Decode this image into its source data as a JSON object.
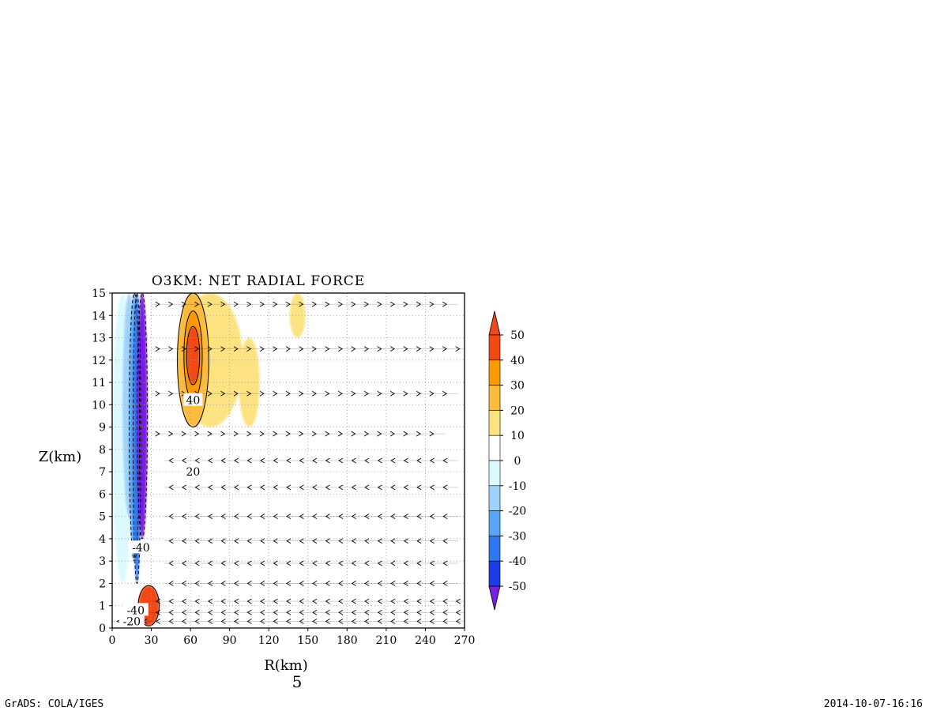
{
  "chart_data": {
    "type": "heatmap",
    "title": "O3KM: NET RADIAL FORCE",
    "xlabel": "R(km)",
    "ylabel": "Z(km)",
    "panel_number": "5",
    "xlim": [
      0,
      270
    ],
    "ylim": [
      0,
      15
    ],
    "x_ticks": [
      "0",
      "30",
      "60",
      "90",
      "120",
      "150",
      "180",
      "210",
      "240",
      "270"
    ],
    "y_ticks": [
      "0",
      "1",
      "2",
      "3",
      "4",
      "5",
      "6",
      "7",
      "8",
      "9",
      "10",
      "11",
      "12",
      "13",
      "14",
      "15"
    ],
    "grid": "dotted",
    "colorbar": {
      "labels": [
        "50",
        "40",
        "30",
        "20",
        "10",
        "0",
        "-10",
        "-20",
        "-30",
        "-40",
        "-50"
      ],
      "bins": [
        {
          "range": [
            40,
            50
          ],
          "color": "#f04a14"
        },
        {
          "range": [
            30,
            40
          ],
          "color": "#fb9a00"
        },
        {
          "range": [
            20,
            30
          ],
          "color": "#fbbb3c"
        },
        {
          "range": [
            10,
            20
          ],
          "color": "#fde282"
        },
        {
          "range": [
            0,
            10
          ],
          "color": "#ffffff"
        },
        {
          "range": [
            -10,
            0
          ],
          "color": "#dcfafe"
        },
        {
          "range": [
            -20,
            -10
          ],
          "color": "#a0d2fa"
        },
        {
          "range": [
            -30,
            -20
          ],
          "color": "#5aa5f5"
        },
        {
          "range": [
            -40,
            -30
          ],
          "color": "#2d78f0"
        },
        {
          "range": [
            -50,
            -40
          ],
          "color": "#1b3ce6"
        }
      ],
      "over_color": "#f0461e",
      "under_color": "#7a1ee6"
    },
    "fields": [
      {
        "value": 5,
        "color": "#dcfafe",
        "center": [
          8,
          8.5
        ],
        "radius": [
          8,
          6.5
        ]
      },
      {
        "value": -15,
        "color": "#a0d2fa",
        "center": [
          13,
          10
        ],
        "radius": [
          5,
          5
        ]
      },
      {
        "value": -25,
        "color": "#5aa5f5",
        "center": [
          17,
          9
        ],
        "radius": [
          4,
          6
        ]
      },
      {
        "value": -35,
        "color": "#2d78f0",
        "center": [
          19,
          8.5
        ],
        "radius": [
          3,
          6.5
        ]
      },
      {
        "value": -55,
        "color": "#7a1ee6",
        "center": [
          23,
          9.5
        ],
        "radius": [
          4,
          5.5
        ]
      },
      {
        "value": 15,
        "color": "#fde282",
        "center": [
          75,
          12
        ],
        "radius": [
          25,
          3
        ]
      },
      {
        "value": 25,
        "color": "#fbbb3c",
        "center": [
          62,
          12
        ],
        "radius": [
          12,
          3
        ]
      },
      {
        "value": 35,
        "color": "#fb9a00",
        "center": [
          62,
          12.2
        ],
        "radius": [
          7,
          2
        ]
      },
      {
        "value": 45,
        "color": "#f04a14",
        "center": [
          62,
          12.2
        ],
        "radius": [
          5,
          1.3
        ]
      },
      {
        "value": 45,
        "color": "#f04a14",
        "center": [
          28,
          1
        ],
        "radius": [
          8,
          0.9
        ]
      },
      {
        "value": 15,
        "color": "#fde282",
        "center": [
          142,
          14
        ],
        "radius": [
          6,
          1
        ]
      },
      {
        "value": 15,
        "color": "#fde282",
        "center": [
          105,
          11
        ],
        "radius": [
          8,
          2
        ]
      }
    ],
    "contour_labels": [
      {
        "text": "40",
        "r": 62,
        "z": 10.2
      },
      {
        "text": "20",
        "r": 62,
        "z": 7.0
      },
      {
        "text": "-40",
        "r": 22,
        "z": 3.6
      },
      {
        "text": "-40",
        "r": 18,
        "z": 0.8
      },
      {
        "text": "-20",
        "r": 15,
        "z": 0.3
      }
    ],
    "wind_arrows": [
      {
        "z": 14.5,
        "r_start": 30,
        "r_end": 265,
        "direction": "outward"
      },
      {
        "z": 12.5,
        "r_start": 30,
        "r_end": 270,
        "direction": "outward"
      },
      {
        "z": 10.5,
        "r_start": 30,
        "r_end": 265,
        "direction": "outward"
      },
      {
        "z": 8.7,
        "r_start": 30,
        "r_end": 255,
        "direction": "outward"
      },
      {
        "z": 7.5,
        "r_start": 40,
        "r_end": 265,
        "direction": "inward"
      },
      {
        "z": 6.3,
        "r_start": 40,
        "r_end": 265,
        "direction": "inward"
      },
      {
        "z": 5.0,
        "r_start": 40,
        "r_end": 265,
        "direction": "inward"
      },
      {
        "z": 3.9,
        "r_start": 40,
        "r_end": 265,
        "direction": "inward"
      },
      {
        "z": 2.9,
        "r_start": 40,
        "r_end": 265,
        "direction": "inward"
      },
      {
        "z": 2.0,
        "r_start": 40,
        "r_end": 265,
        "direction": "inward"
      },
      {
        "z": 1.2,
        "r_start": 30,
        "r_end": 270,
        "direction": "inward"
      },
      {
        "z": 0.7,
        "r_start": 20,
        "r_end": 270,
        "direction": "inward"
      },
      {
        "z": 0.3,
        "r_start": 0,
        "r_end": 270,
        "direction": "inward"
      }
    ]
  },
  "footer": {
    "left": "GrADS: COLA/IGES",
    "right": "2014-10-07-16:16"
  }
}
